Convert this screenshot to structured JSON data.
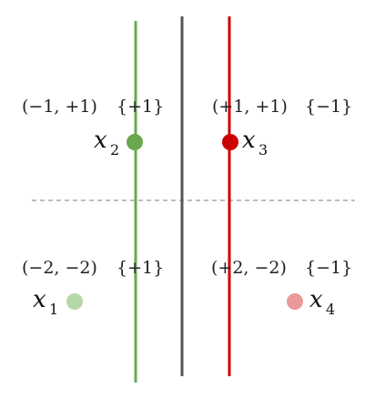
{
  "colors": {
    "background": "#ffffff",
    "green_line": "#6aa84f",
    "green_point": "#6aa84f",
    "green_point_light": "#b6d7a8",
    "red_line": "#cc0000",
    "red_point": "#cc0000",
    "red_point_light": "#ea9999",
    "gray_line": "#555555",
    "dashed_line": "#999999",
    "text": "#222222"
  },
  "quadrants": {
    "top_left": {
      "coords": "(−1, +1)",
      "label": "{+1}"
    },
    "top_right": {
      "coords": "(+1, +1)",
      "label": "{−1}"
    },
    "bottom_left": {
      "coords": "(−2, −2)",
      "label": "{+1}"
    },
    "bottom_right": {
      "coords": "(+2, −2)",
      "label": "{−1}"
    }
  },
  "points": {
    "x1": {
      "symbol": "x",
      "subscript": "1"
    },
    "x2": {
      "symbol": "x",
      "subscript": "2"
    },
    "x3": {
      "symbol": "x",
      "subscript": "3"
    },
    "x4": {
      "symbol": "x",
      "subscript": "4"
    }
  }
}
